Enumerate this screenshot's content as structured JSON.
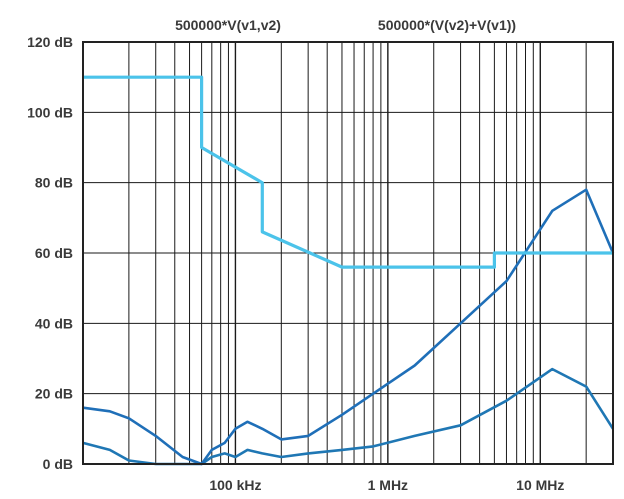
{
  "chart_data": {
    "type": "line",
    "x_scale": "log",
    "x_unit": "Hz",
    "xlim": [
      10000,
      30000000
    ],
    "ylim": [
      0,
      120
    ],
    "grid": true,
    "legend_position": "top",
    "y_ticks": [
      {
        "value": 0,
        "label": "0 dB"
      },
      {
        "value": 20,
        "label": "20 dB"
      },
      {
        "value": 40,
        "label": "40 dB"
      },
      {
        "value": 60,
        "label": "60 dB"
      },
      {
        "value": 80,
        "label": "80 dB"
      },
      {
        "value": 100,
        "label": "100 dB"
      },
      {
        "value": 120,
        "label": "120 dB"
      }
    ],
    "x_ticks": [
      {
        "value": 100000,
        "label": "100 kHz"
      },
      {
        "value": 1000000,
        "label": "1 MHz"
      },
      {
        "value": 10000000,
        "label": "10 MHz"
      }
    ],
    "series": [
      {
        "name": "500000*V(v1,v2)",
        "color": "#1f77b4",
        "x": [
          10000,
          15000,
          20000,
          30000,
          45000,
          60000,
          70000,
          85000,
          100000,
          120000,
          150000,
          200000,
          300000,
          500000,
          800000,
          1500000,
          3000000,
          6000000,
          12000000,
          20000000,
          30000000
        ],
        "y": [
          6,
          4,
          1,
          0,
          0,
          0,
          2,
          3,
          2,
          4,
          3,
          2,
          3,
          4,
          5,
          8,
          11,
          18,
          27,
          22,
          10
        ]
      },
      {
        "name": "500000*(V(v2)+V(v1))",
        "color": "#1f6fb8",
        "x": [
          10000,
          15000,
          20000,
          30000,
          45000,
          60000,
          70000,
          85000,
          100000,
          120000,
          150000,
          200000,
          300000,
          500000,
          800000,
          1500000,
          3000000,
          6000000,
          12000000,
          20000000,
          30000000
        ],
        "y": [
          16,
          15,
          13,
          8,
          2,
          0,
          4,
          6,
          10,
          12,
          10,
          7,
          8,
          14,
          20,
          28,
          40,
          52,
          72,
          78,
          60
        ]
      },
      {
        "name": "",
        "color": "#4bc3ea",
        "x": [
          10000,
          60000,
          60000,
          150000,
          150000,
          500000,
          5000000,
          5000000,
          30000000
        ],
        "y": [
          110,
          110,
          90,
          80,
          66,
          56,
          56,
          60,
          60
        ]
      }
    ]
  }
}
